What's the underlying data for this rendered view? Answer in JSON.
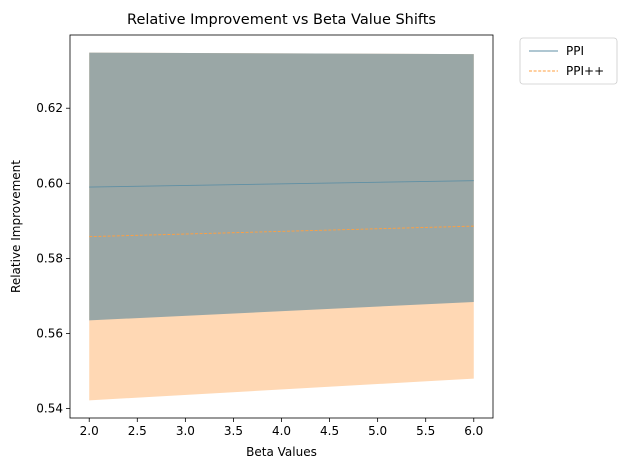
{
  "chart_data": {
    "type": "line",
    "title": "Relative Improvement vs Beta Value Shifts",
    "xlabel": "Beta Values",
    "ylabel": "Relative Improvement",
    "xlim": [
      1.8,
      6.2
    ],
    "ylim": [
      0.5375,
      0.6395
    ],
    "x_ticks": [
      "2.0",
      "2.5",
      "3.0",
      "3.5",
      "4.0",
      "4.5",
      "5.0",
      "5.5",
      "6.0"
    ],
    "y_ticks": [
      "0.54",
      "0.56",
      "0.58",
      "0.60",
      "0.62"
    ],
    "grid": false,
    "legend_position": "outside-top-right",
    "series": [
      {
        "name": "PPI",
        "color": "#5f8fa4",
        "line_style": "solid",
        "band_color": "#9aa7a6",
        "x": [
          2.0,
          6.0
        ],
        "y": [
          0.599,
          0.6007
        ],
        "lower": [
          0.5635,
          0.5684
        ],
        "upper": [
          0.6348,
          0.6344
        ]
      },
      {
        "name": "PPI++",
        "color": "#ff9f3f",
        "line_style": "dashed",
        "band_color": "#ffd8b4",
        "x": [
          2.0,
          6.0
        ],
        "y": [
          0.5858,
          0.5886
        ],
        "lower": [
          0.5422,
          0.548
        ],
        "upper": [
          0.6348,
          0.6344
        ]
      }
    ]
  }
}
